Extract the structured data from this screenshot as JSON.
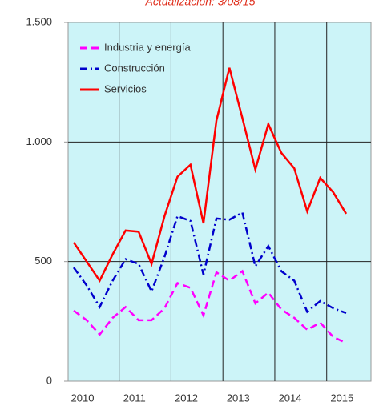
{
  "chart_data": {
    "type": "line",
    "title": "Actualización: 3/08/15",
    "categories": [
      "2010",
      null,
      null,
      null,
      "2011",
      null,
      null,
      null,
      "2012",
      null,
      null,
      null,
      "2013",
      null,
      null,
      null,
      "2014",
      null,
      null,
      null,
      "2015",
      null
    ],
    "series": [
      {
        "name": "Industria y energía",
        "color": "#ff00ff",
        "dash": "dashed",
        "values": [
          295,
          255,
          195,
          265,
          310,
          255,
          255,
          305,
          410,
          390,
          275,
          455,
          420,
          460,
          325,
          370,
          300,
          265,
          215,
          245,
          185,
          160
        ]
      },
      {
        "name": "Construcción",
        "color": "#0000cc",
        "dash": "dashdot",
        "values": [
          475,
          400,
          310,
          420,
          510,
          490,
          375,
          520,
          690,
          670,
          445,
          680,
          675,
          705,
          480,
          565,
          460,
          420,
          290,
          335,
          305,
          285
        ]
      },
      {
        "name": "Servicios",
        "color": "#ff0000",
        "dash": "solid",
        "values": [
          580,
          500,
          420,
          530,
          630,
          625,
          490,
          690,
          855,
          905,
          660,
          1090,
          1310,
          1100,
          885,
          1075,
          955,
          890,
          710,
          850,
          790,
          700
        ]
      }
    ],
    "ylim": [
      0,
      1500
    ],
    "yticks": [
      {
        "value": 0,
        "label": "0"
      },
      {
        "value": 500,
        "label": "500"
      },
      {
        "value": 1000,
        "label": "1.000"
      },
      {
        "value": 1500,
        "label": "1.500"
      }
    ],
    "grid": true,
    "legend": "upper left"
  }
}
